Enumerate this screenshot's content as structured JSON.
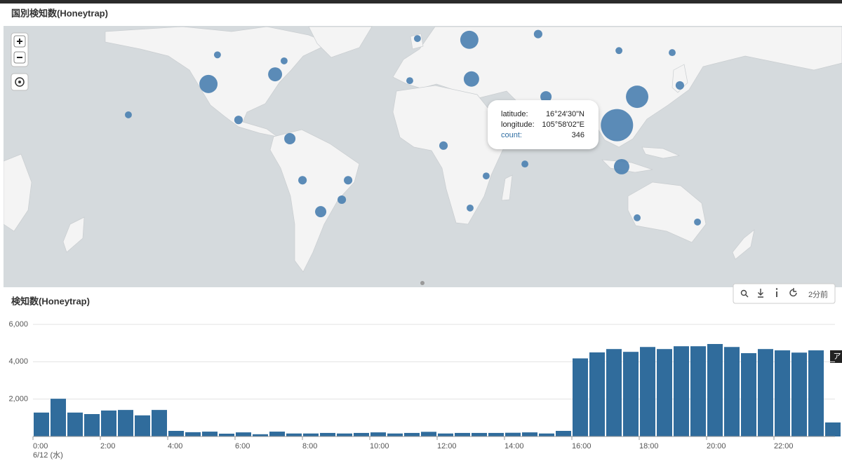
{
  "header": {
    "map_title": "国別検知数(Honeytrap)",
    "chart_title": "検知数(Honeytrap)"
  },
  "map": {
    "color": "#4a80b0",
    "markers": [
      {
        "lat": 52.1,
        "lon": 28.9,
        "count": 110
      },
      {
        "lat": 52.5,
        "lon": 1.8,
        "count": 16
      },
      {
        "lat": 53.9,
        "lon": 64.8,
        "count": 24
      },
      {
        "lat": 48.5,
        "lon": 107.0,
        "count": 16
      },
      {
        "lat": 47.8,
        "lon": 134.8,
        "count": 16
      },
      {
        "lat": 47.0,
        "lon": -102.6,
        "count": 16
      },
      {
        "lat": 44.8,
        "lon": -67.8,
        "count": 16
      },
      {
        "lat": 35.6,
        "lon": -107.3,
        "count": 110
      },
      {
        "lat": 39.6,
        "lon": -72.5,
        "count": 65
      },
      {
        "lat": 37.7,
        "lon": 30.0,
        "count": 79
      },
      {
        "lat": 37.0,
        "lon": -2.2,
        "count": 16
      },
      {
        "lat": 35.0,
        "lon": 138.8,
        "count": 24
      },
      {
        "lat": 30.0,
        "lon": 116.5,
        "count": 167
      },
      {
        "lat": 30.0,
        "lon": 68.9,
        "count": 42
      },
      {
        "lat": 16.4083,
        "lon": 105.9672,
        "count": 346
      },
      {
        "lat": 21.5,
        "lon": -149.1,
        "count": 16
      },
      {
        "lat": 19.0,
        "lon": -91.6,
        "count": 24
      },
      {
        "lat": 9.5,
        "lon": -64.8,
        "count": 42
      },
      {
        "lat": 5.9,
        "lon": 15.4,
        "count": 24
      },
      {
        "lat": -3.7,
        "lon": 57.9,
        "count": 16
      },
      {
        "lat": -5.1,
        "lon": 108.4,
        "count": 79
      },
      {
        "lat": -9.9,
        "lon": 37.7,
        "count": 16
      },
      {
        "lat": -12.1,
        "lon": -58.2,
        "count": 24
      },
      {
        "lat": -12.1,
        "lon": -34.4,
        "count": 24
      },
      {
        "lat": -21.8,
        "lon": -37.7,
        "count": 24
      },
      {
        "lat": -27.5,
        "lon": -48.7,
        "count": 42
      },
      {
        "lat": -25.8,
        "lon": 29.3,
        "count": 16
      },
      {
        "lat": -30.3,
        "lon": 116.5,
        "count": 16
      },
      {
        "lat": -32.2,
        "lon": 148.0,
        "count": 16
      }
    ],
    "tooltip": {
      "latitude_label": "latitude:",
      "latitude": "16°24'30\"N",
      "longitude_label": "longitude:",
      "longitude": "105°58'02\"E",
      "count_label": "count:"
    }
  },
  "toolbar": {
    "updated": "2分前"
  },
  "side_tab": "ア",
  "chart_data": {
    "type": "bar",
    "color": "#306c9c",
    "grid": true,
    "ylim": [
      0,
      6000
    ],
    "yticks": [
      {
        "value": 2000,
        "label": "2,000"
      },
      {
        "value": 4000,
        "label": "4,000"
      },
      {
        "value": 6000,
        "label": "6,000"
      }
    ],
    "x_sublabel": "6/12 (水)",
    "categories": [
      "0:00",
      null,
      null,
      null,
      "2:00",
      null,
      null,
      null,
      "4:00",
      null,
      null,
      null,
      "6:00",
      null,
      null,
      null,
      "8:00",
      null,
      null,
      null,
      "10:00",
      null,
      null,
      null,
      "12:00",
      null,
      null,
      null,
      "14:00",
      null,
      null,
      null,
      "16:00",
      null,
      null,
      null,
      "18:00",
      null,
      null,
      null,
      "20:00",
      null,
      null,
      null,
      "22:00",
      null,
      null,
      null
    ],
    "values": [
      1280,
      2020,
      1280,
      1200,
      1390,
      1420,
      1130,
      1420,
      300,
      230,
      260,
      150,
      220,
      120,
      260,
      160,
      160,
      190,
      160,
      190,
      220,
      160,
      190,
      250,
      160,
      190,
      190,
      190,
      200,
      220,
      160,
      300,
      4180,
      4500,
      4680,
      4530,
      4790,
      4680,
      4830,
      4830,
      4950,
      4790,
      4460,
      4680,
      4610,
      4490,
      4610,
      750
    ]
  }
}
